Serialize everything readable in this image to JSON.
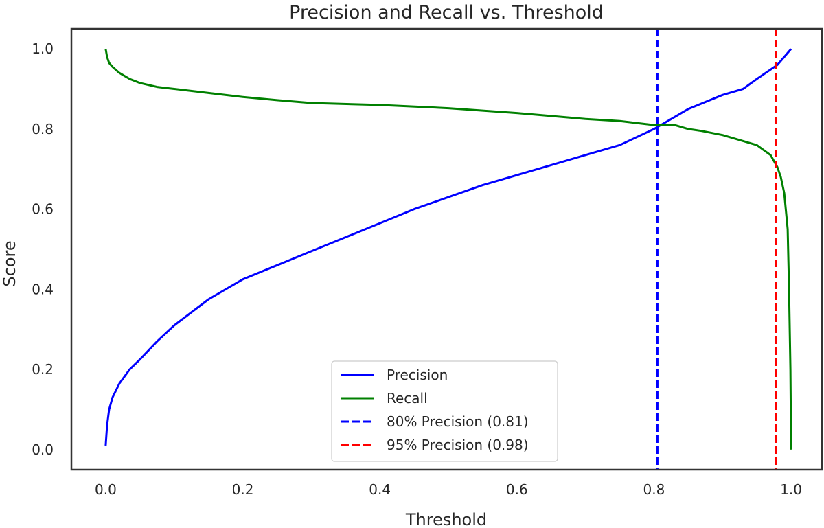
{
  "chart_data": {
    "type": "line",
    "title": "Precision and Recall vs. Threshold",
    "xlabel": "Threshold",
    "ylabel": "Score",
    "xlim": [
      -0.05,
      1.045
    ],
    "ylim": [
      -0.05,
      1.05
    ],
    "xticks": [
      "0.0",
      "0.2",
      "0.4",
      "0.6",
      "0.8",
      "1.0"
    ],
    "yticks": [
      "0.0",
      "0.2",
      "0.4",
      "0.6",
      "0.8",
      "1.0"
    ],
    "grid": false,
    "legend_position": "lower-center",
    "series": [
      {
        "name": "Precision",
        "color": "#0000ff",
        "style": "solid",
        "x": [
          0.0,
          0.002,
          0.005,
          0.01,
          0.02,
          0.035,
          0.05,
          0.075,
          0.1,
          0.15,
          0.2,
          0.25,
          0.3,
          0.35,
          0.4,
          0.45,
          0.5,
          0.55,
          0.6,
          0.65,
          0.7,
          0.75,
          0.8,
          0.83,
          0.85,
          0.9,
          0.93,
          0.95,
          0.98,
          0.99,
          1.0
        ],
        "y": [
          0.01,
          0.06,
          0.1,
          0.13,
          0.165,
          0.2,
          0.225,
          0.27,
          0.31,
          0.375,
          0.425,
          0.46,
          0.495,
          0.53,
          0.565,
          0.6,
          0.63,
          0.66,
          0.685,
          0.71,
          0.735,
          0.76,
          0.8,
          0.83,
          0.85,
          0.885,
          0.9,
          0.925,
          0.96,
          0.98,
          1.0
        ]
      },
      {
        "name": "Recall",
        "color": "#008000",
        "style": "solid",
        "x": [
          0.0,
          0.002,
          0.005,
          0.01,
          0.02,
          0.035,
          0.05,
          0.075,
          0.1,
          0.15,
          0.2,
          0.25,
          0.3,
          0.4,
          0.5,
          0.6,
          0.7,
          0.75,
          0.8,
          0.83,
          0.85,
          0.87,
          0.9,
          0.93,
          0.95,
          0.97,
          0.98,
          0.985,
          0.99,
          0.995,
          0.997,
          0.999,
          1.0
        ],
        "y": [
          1.0,
          0.98,
          0.965,
          0.955,
          0.94,
          0.925,
          0.915,
          0.905,
          0.9,
          0.89,
          0.88,
          0.872,
          0.865,
          0.86,
          0.852,
          0.84,
          0.825,
          0.82,
          0.81,
          0.81,
          0.8,
          0.795,
          0.785,
          0.77,
          0.76,
          0.735,
          0.705,
          0.68,
          0.64,
          0.55,
          0.4,
          0.2,
          0.0
        ]
      },
      {
        "name": "80% Precision (0.81)",
        "color": "#0000ff",
        "style": "dashed",
        "vline": 0.805
      },
      {
        "name": "95% Precision (0.98)",
        "color": "#ff0000",
        "style": "dashed",
        "vline": 0.978
      }
    ]
  }
}
